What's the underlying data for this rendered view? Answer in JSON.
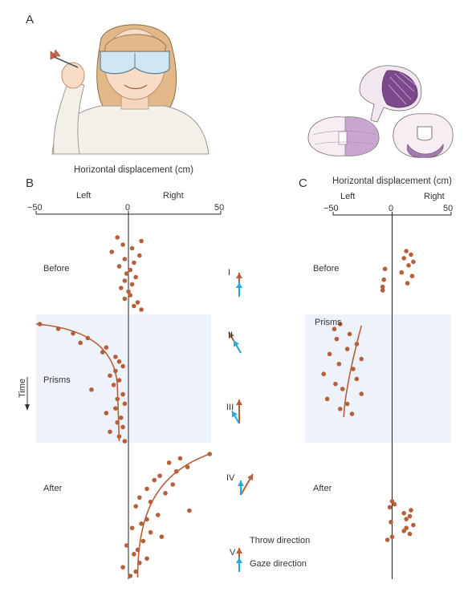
{
  "panel_a": {
    "letter": "A",
    "illustration": "woman-throwing-dart-with-prism-goggles",
    "brain_illustration": "cerebellum-views"
  },
  "chart_data": [
    {
      "type": "scatter",
      "panel": "B",
      "title": "Horizontal displacement (cm)",
      "side_labels": {
        "left": "Left",
        "right": "Right"
      },
      "xlim": [
        -50,
        50
      ],
      "xticks": [
        -50,
        0,
        50
      ],
      "xtick_labels": [
        "−50",
        "0",
        "50"
      ],
      "ylabel": "Time",
      "phases": [
        "Before",
        "Prisms",
        "After"
      ],
      "points": [
        {
          "phase": "Before",
          "t": 0,
          "x": -6
        },
        {
          "phase": "Before",
          "t": 1,
          "x": 7
        },
        {
          "phase": "Before",
          "t": 2,
          "x": -3
        },
        {
          "phase": "Before",
          "t": 3,
          "x": 2
        },
        {
          "phase": "Before",
          "t": 4,
          "x": -9
        },
        {
          "phase": "Before",
          "t": 5,
          "x": 6
        },
        {
          "phase": "Before",
          "t": 6,
          "x": -2
        },
        {
          "phase": "Before",
          "t": 7,
          "x": 3
        },
        {
          "phase": "Before",
          "t": 8,
          "x": -5
        },
        {
          "phase": "Before",
          "t": 9,
          "x": 1
        },
        {
          "phase": "Before",
          "t": 10,
          "x": -1
        },
        {
          "phase": "Before",
          "t": 11,
          "x": 4
        },
        {
          "phase": "Before",
          "t": 12,
          "x": -2
        },
        {
          "phase": "Before",
          "t": 13,
          "x": 2
        },
        {
          "phase": "Before",
          "t": 14,
          "x": -4
        },
        {
          "phase": "Before",
          "t": 15,
          "x": 0
        },
        {
          "phase": "Before",
          "t": 16,
          "x": 1
        },
        {
          "phase": "Before",
          "t": 17,
          "x": -2
        },
        {
          "phase": "Before",
          "t": 18,
          "x": 5
        },
        {
          "phase": "Before",
          "t": 19,
          "x": 3
        },
        {
          "phase": "Before",
          "t": 20,
          "x": 7
        },
        {
          "phase": "Prisms",
          "t": 0,
          "x": -48
        },
        {
          "phase": "Prisms",
          "t": 1,
          "x": -38
        },
        {
          "phase": "Prisms",
          "t": 2,
          "x": -30
        },
        {
          "phase": "Prisms",
          "t": 3,
          "x": -22
        },
        {
          "phase": "Prisms",
          "t": 4,
          "x": -26
        },
        {
          "phase": "Prisms",
          "t": 5,
          "x": -12
        },
        {
          "phase": "Prisms",
          "t": 6,
          "x": -14
        },
        {
          "phase": "Prisms",
          "t": 7,
          "x": -7
        },
        {
          "phase": "Prisms",
          "t": 8,
          "x": -5
        },
        {
          "phase": "Prisms",
          "t": 9,
          "x": -3
        },
        {
          "phase": "Prisms",
          "t": 10,
          "x": -7
        },
        {
          "phase": "Prisms",
          "t": 11,
          "x": -10
        },
        {
          "phase": "Prisms",
          "t": 12,
          "x": -5
        },
        {
          "phase": "Prisms",
          "t": 13,
          "x": -8
        },
        {
          "phase": "Prisms",
          "t": 14,
          "x": -20
        },
        {
          "phase": "Prisms",
          "t": 15,
          "x": -3
        },
        {
          "phase": "Prisms",
          "t": 16,
          "x": -6
        },
        {
          "phase": "Prisms",
          "t": 17,
          "x": -2
        },
        {
          "phase": "Prisms",
          "t": 18,
          "x": -7
        },
        {
          "phase": "Prisms",
          "t": 19,
          "x": -12
        },
        {
          "phase": "Prisms",
          "t": 20,
          "x": -4
        },
        {
          "phase": "Prisms",
          "t": 21,
          "x": -6
        },
        {
          "phase": "Prisms",
          "t": 22,
          "x": -3
        },
        {
          "phase": "Prisms",
          "t": 23,
          "x": -10
        },
        {
          "phase": "Prisms",
          "t": 24,
          "x": -5
        },
        {
          "phase": "Prisms",
          "t": 25,
          "x": -2
        },
        {
          "phase": "After",
          "t": 0,
          "x": 44
        },
        {
          "phase": "After",
          "t": 1,
          "x": 28
        },
        {
          "phase": "After",
          "t": 2,
          "x": 22
        },
        {
          "phase": "After",
          "t": 3,
          "x": 32
        },
        {
          "phase": "After",
          "t": 4,
          "x": 26
        },
        {
          "phase": "After",
          "t": 5,
          "x": 17
        },
        {
          "phase": "After",
          "t": 6,
          "x": 14
        },
        {
          "phase": "After",
          "t": 7,
          "x": 24
        },
        {
          "phase": "After",
          "t": 8,
          "x": 10
        },
        {
          "phase": "After",
          "t": 9,
          "x": 20
        },
        {
          "phase": "After",
          "t": 10,
          "x": 6
        },
        {
          "phase": "After",
          "t": 11,
          "x": 12
        },
        {
          "phase": "After",
          "t": 12,
          "x": 4
        },
        {
          "phase": "After",
          "t": 13,
          "x": 33
        },
        {
          "phase": "After",
          "t": 14,
          "x": 16
        },
        {
          "phase": "After",
          "t": 15,
          "x": 10
        },
        {
          "phase": "After",
          "t": 16,
          "x": 7
        },
        {
          "phase": "After",
          "t": 17,
          "x": 2
        },
        {
          "phase": "After",
          "t": 18,
          "x": 12
        },
        {
          "phase": "After",
          "t": 19,
          "x": 18
        },
        {
          "phase": "After",
          "t": 20,
          "x": 8
        },
        {
          "phase": "After",
          "t": 21,
          "x": -1
        },
        {
          "phase": "After",
          "t": 22,
          "x": 5
        },
        {
          "phase": "After",
          "t": 23,
          "x": 3
        },
        {
          "phase": "After",
          "t": 24,
          "x": 10
        },
        {
          "phase": "After",
          "t": 25,
          "x": 6
        },
        {
          "phase": "After",
          "t": 26,
          "x": -3
        },
        {
          "phase": "After",
          "t": 27,
          "x": 4
        },
        {
          "phase": "After",
          "t": 28,
          "x": 1
        }
      ]
    },
    {
      "type": "scatter",
      "panel": "C",
      "title": "Horizontal displacement (cm)",
      "side_labels": {
        "left": "Left",
        "right": "Right"
      },
      "xlim": [
        -50,
        50
      ],
      "xticks": [
        -50,
        0,
        50
      ],
      "xtick_labels": [
        "−50",
        "0",
        "50"
      ],
      "phases": [
        "Before",
        "Prisms",
        "After"
      ],
      "points": [
        {
          "phase": "Before",
          "t": 0,
          "x": 12
        },
        {
          "phase": "Before",
          "t": 1,
          "x": 16
        },
        {
          "phase": "Before",
          "t": 2,
          "x": 10
        },
        {
          "phase": "Before",
          "t": 3,
          "x": 18
        },
        {
          "phase": "Before",
          "t": 4,
          "x": 14
        },
        {
          "phase": "Before",
          "t": 5,
          "x": -6
        },
        {
          "phase": "Before",
          "t": 6,
          "x": 8
        },
        {
          "phase": "Before",
          "t": 7,
          "x": 17
        },
        {
          "phase": "Before",
          "t": 8,
          "x": -7
        },
        {
          "phase": "Before",
          "t": 9,
          "x": 13
        },
        {
          "phase": "Before",
          "t": 10,
          "x": -8
        },
        {
          "phase": "Before",
          "t": 11,
          "x": -8
        },
        {
          "phase": "Prisms",
          "t": 0,
          "x": -44
        },
        {
          "phase": "Prisms",
          "t": 1,
          "x": -49
        },
        {
          "phase": "Prisms",
          "t": 2,
          "x": -36
        },
        {
          "phase": "Prisms",
          "t": 3,
          "x": -47
        },
        {
          "phase": "Prisms",
          "t": 4,
          "x": -30
        },
        {
          "phase": "Prisms",
          "t": 5,
          "x": -38
        },
        {
          "phase": "Prisms",
          "t": 6,
          "x": -53
        },
        {
          "phase": "Prisms",
          "t": 7,
          "x": -26
        },
        {
          "phase": "Prisms",
          "t": 8,
          "x": -45
        },
        {
          "phase": "Prisms",
          "t": 9,
          "x": -33
        },
        {
          "phase": "Prisms",
          "t": 10,
          "x": -58
        },
        {
          "phase": "Prisms",
          "t": 11,
          "x": -30
        },
        {
          "phase": "Prisms",
          "t": 12,
          "x": -48
        },
        {
          "phase": "Prisms",
          "t": 13,
          "x": -42
        },
        {
          "phase": "Prisms",
          "t": 14,
          "x": -26
        },
        {
          "phase": "Prisms",
          "t": 15,
          "x": -55
        },
        {
          "phase": "Prisms",
          "t": 16,
          "x": -38
        },
        {
          "phase": "Prisms",
          "t": 17,
          "x": -44
        },
        {
          "phase": "Prisms",
          "t": 18,
          "x": -34
        },
        {
          "phase": "After",
          "t": 0,
          "x": 0
        },
        {
          "phase": "After",
          "t": 1,
          "x": 2
        },
        {
          "phase": "After",
          "t": 2,
          "x": -2
        },
        {
          "phase": "After",
          "t": 3,
          "x": 16
        },
        {
          "phase": "After",
          "t": 4,
          "x": 10
        },
        {
          "phase": "After",
          "t": 5,
          "x": 15
        },
        {
          "phase": "After",
          "t": 6,
          "x": 12
        },
        {
          "phase": "After",
          "t": 7,
          "x": -1
        },
        {
          "phase": "After",
          "t": 8,
          "x": 18
        },
        {
          "phase": "After",
          "t": 9,
          "x": 12
        },
        {
          "phase": "After",
          "t": 10,
          "x": 10
        },
        {
          "phase": "After",
          "t": 11,
          "x": 15
        },
        {
          "phase": "After",
          "t": 12,
          "x": 0
        },
        {
          "phase": "After",
          "t": 13,
          "x": -4
        }
      ]
    }
  ],
  "panel_b": {
    "letter": "B",
    "title": "Horizontal displacement (cm)",
    "left": "Left",
    "right": "Right",
    "tick_neg": "−50",
    "tick_zero": "0",
    "tick_pos": "50",
    "before": "Before",
    "prisms": "Prisms",
    "after": "After",
    "time": "Time"
  },
  "panel_c": {
    "letter": "C",
    "title": "Horizontal displacement (cm)",
    "left": "Left",
    "right": "Right",
    "tick_neg": "−50",
    "tick_zero": "0",
    "tick_pos": "50",
    "before": "Before",
    "prisms": "Prisms",
    "after": "After"
  },
  "vectors": {
    "items": [
      {
        "label": "I",
        "throw_angle_deg": 0,
        "gaze_angle_deg": 0
      },
      {
        "label": "II",
        "throw_angle_deg": -30,
        "gaze_angle_deg": -30
      },
      {
        "label": "III",
        "throw_angle_deg": 0,
        "gaze_angle_deg": -30
      },
      {
        "label": "IV",
        "throw_angle_deg": 30,
        "gaze_angle_deg": 0
      },
      {
        "label": "V",
        "throw_angle_deg": 0,
        "gaze_angle_deg": 0
      }
    ],
    "throw_label": "Throw direction",
    "gaze_label": "Gaze direction"
  },
  "colors": {
    "point": "#b5603a",
    "curve": "#b5603a",
    "throw_arrow": "#b5603a",
    "gaze_arrow": "#29a8e0",
    "prism_band": "#eef3fb",
    "axis": "#222222",
    "brain_purple": "#8c5a99",
    "brain_light": "#e9d9e6"
  }
}
